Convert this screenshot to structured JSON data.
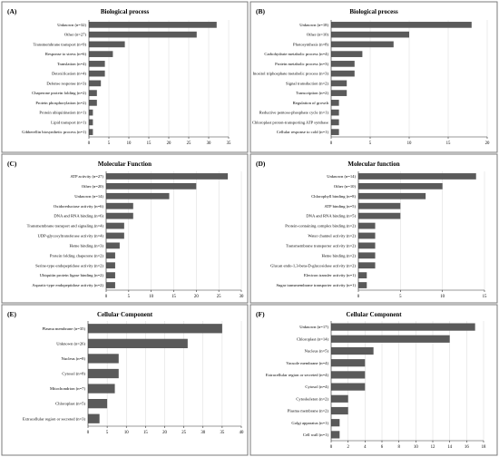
{
  "chart_data": [
    {
      "type": "bar",
      "orientation": "horizontal",
      "panel": "(A)",
      "title": "Biological process",
      "categories": [
        "Unknown (n=32)",
        "Other (n=27)",
        "Transmembrane transport (n=9)",
        "Response to stress (n=6)",
        "Translation (n=4)",
        "Detoxification (n=4)",
        "Defense response (n=3)",
        "Chaperone protein folding (n=2)",
        "Protein phosphorylation (n=2)",
        "Protein ubiquitination (n=1)",
        "Lipid transport (n=1)",
        "Gibberellin biosynthetic process (n=1)"
      ],
      "values": [
        32,
        27,
        9,
        6,
        4,
        4,
        3,
        2,
        2,
        1,
        1,
        1
      ],
      "xlim": [
        0,
        35
      ],
      "xticks": [
        0,
        5,
        10,
        15,
        20,
        25,
        30,
        35
      ],
      "grid": true
    },
    {
      "type": "bar",
      "orientation": "horizontal",
      "panel": "(B)",
      "title": "Biological process",
      "categories": [
        "Unknown (n=18)",
        "Other (n=10)",
        "Photosynthesis (n=8)",
        "Carbohydrate metabolic process (n=4)",
        "Protein metabolic process (n=3)",
        "Inositol triphosphate metabolic process (n=3)",
        "Signal transduction (n=2)",
        "Transcription (n=2)",
        "Regulation of growth",
        "Reductive pentose-phosphate cycle (n=1)",
        "Chloroplast proton-transporting ATP synthase",
        "Cellular response to cold (n=1)"
      ],
      "values": [
        18,
        10,
        8,
        4,
        3,
        3,
        2,
        2,
        1,
        1,
        1,
        1
      ],
      "xlim": [
        0,
        20
      ],
      "xticks": [
        0,
        5,
        10,
        15,
        20
      ],
      "grid": true
    },
    {
      "type": "bar",
      "orientation": "horizontal",
      "panel": "(C)",
      "title": "Molecular Function",
      "categories": [
        "ATP activity (n=27)",
        "Other (n=20)",
        "Unknown (n=14)",
        "Oxidoreductase activity (n=6)",
        "DNA and RNA binding (n=6)",
        "Transmembrane transport and signaling (n=4)",
        "UDP-glycosyltransferase activity (n=4)",
        "Heme binding (n=3)",
        "Protein folding chaperone (n=2)",
        "Serine-type endopeptidase activity (n=2)",
        "Ubiquitin protein ligase binding (n=2)",
        "Aspartic-type endopeptidase activity (n=2)"
      ],
      "values": [
        27,
        20,
        14,
        6,
        6,
        4,
        4,
        3,
        2,
        2,
        2,
        2
      ],
      "xlim": [
        0,
        30
      ],
      "xticks": [
        0,
        5,
        10,
        15,
        20,
        25,
        30
      ],
      "grid": true
    },
    {
      "type": "bar",
      "orientation": "horizontal",
      "panel": "(D)",
      "title": "Molecular function",
      "categories": [
        "Unknown (n=14)",
        "Other (n=10)",
        "Chlorophyll binding (n=8)",
        "ATP binding (n=5)",
        "DNA and RNA binding (n=5)",
        "Protein-containing complex binding (n=2)",
        "Water channel activity (n=2)",
        "Transmembrane transporter activity (n=2)",
        "Heme binding (n=2)",
        "Glucan endo-1,3-beta-D-glucosidase activity (n=2)",
        "Electron transfer activity (n=1)",
        "Sugar transmembrane transporter activity (n=1)"
      ],
      "values": [
        14,
        10,
        8,
        5,
        5,
        2,
        2,
        2,
        2,
        2,
        1,
        1
      ],
      "xlim": [
        0,
        15
      ],
      "xticks": [
        0,
        5,
        10,
        15
      ],
      "grid": true
    },
    {
      "type": "bar",
      "orientation": "horizontal",
      "panel": "(E)",
      "title": "Cellular Component",
      "categories": [
        "Plasma membrane (n=35)",
        "Unknown (n=26)",
        "Nucleus (n=8)",
        "Cytosol (n=8)",
        "Mitochondrion (n=7)",
        "Chloroplast (n=5)",
        "Extracellular region or secreted (n=3)"
      ],
      "values": [
        35,
        26,
        8,
        8,
        7,
        5,
        3
      ],
      "xlim": [
        0,
        40
      ],
      "xticks": [
        0,
        5,
        10,
        15,
        20,
        25,
        30,
        35,
        40
      ],
      "grid": true
    },
    {
      "type": "bar",
      "orientation": "horizontal",
      "panel": "(F)",
      "title": "Cellular Component",
      "categories": [
        "Unknown (n=17)",
        "Chloroplast (n=14)",
        "Nucleus (n=5)",
        "Vacuole membrane (n=4)",
        "Extracellular region or secreted (n=4)",
        "Cytosol (n=4)",
        "Cytoskeleton (n=2)",
        "Plasma membrane (n=2)",
        "Golgi apparatus (n=1)",
        "Cell wall (n=1)"
      ],
      "values": [
        17,
        14,
        5,
        4,
        4,
        4,
        2,
        2,
        1,
        1
      ],
      "xlim": [
        0,
        18
      ],
      "xticks": [
        0,
        2,
        4,
        6,
        8,
        10,
        12,
        14,
        16,
        18
      ],
      "grid": true
    }
  ]
}
